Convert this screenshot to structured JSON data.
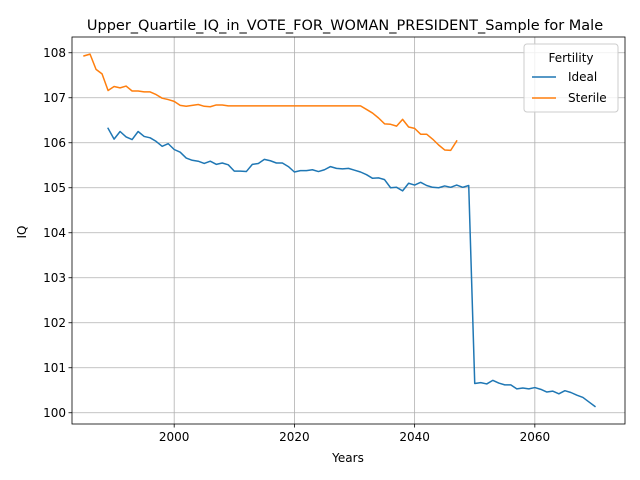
{
  "chart_data": {
    "type": "line",
    "title": "Upper_Quartile_IQ_in_VOTE_FOR_WOMAN_PRESIDENT_Sample for Male",
    "xlabel": "Years",
    "ylabel": "IQ",
    "xlim": [
      1983,
      2075
    ],
    "ylim": [
      99.75,
      108.35
    ],
    "xticks": [
      2000,
      2020,
      2040,
      2060
    ],
    "yticks": [
      100,
      101,
      102,
      103,
      104,
      105,
      106,
      107,
      108
    ],
    "grid": true,
    "legend": {
      "title": "Fertility",
      "placement": "top-right"
    },
    "series": [
      {
        "name": "Ideal",
        "color": "#1f77b4",
        "x": [
          1989,
          1990,
          1991,
          1992,
          1993,
          1994,
          1995,
          1996,
          1997,
          1998,
          1999,
          2000,
          2001,
          2002,
          2003,
          2004,
          2005,
          2006,
          2007,
          2008,
          2009,
          2010,
          2011,
          2012,
          2013,
          2014,
          2015,
          2016,
          2017,
          2018,
          2019,
          2020,
          2021,
          2022,
          2023,
          2024,
          2025,
          2026,
          2027,
          2028,
          2029,
          2030,
          2031,
          2032,
          2033,
          2034,
          2035,
          2036,
          2037,
          2038,
          2039,
          2040,
          2041,
          2042,
          2043,
          2044,
          2045,
          2046,
          2047,
          2048,
          2049,
          2050,
          2051,
          2052,
          2053,
          2054,
          2055,
          2056,
          2057,
          2058,
          2059,
          2060,
          2061,
          2062,
          2063,
          2064,
          2065,
          2066,
          2067,
          2068,
          2069,
          2070
        ],
        "values": [
          106.32,
          106.08,
          106.25,
          106.13,
          106.07,
          106.25,
          106.14,
          106.11,
          106.03,
          105.92,
          105.98,
          105.85,
          105.79,
          105.66,
          105.61,
          105.59,
          105.54,
          105.59,
          105.52,
          105.55,
          105.51,
          105.37,
          105.37,
          105.36,
          105.52,
          105.54,
          105.63,
          105.6,
          105.55,
          105.55,
          105.47,
          105.35,
          105.38,
          105.38,
          105.4,
          105.36,
          105.4,
          105.47,
          105.43,
          105.42,
          105.43,
          105.39,
          105.35,
          105.29,
          105.21,
          105.22,
          105.18,
          105.0,
          105.01,
          104.93,
          105.1,
          105.06,
          105.12,
          105.05,
          105.01,
          105.0,
          105.04,
          105.01,
          105.06,
          105.01,
          105.05,
          100.65,
          100.67,
          100.64,
          100.72,
          100.66,
          100.62,
          100.62,
          100.53,
          100.55,
          100.53,
          100.56,
          100.52,
          100.46,
          100.48,
          100.42,
          100.49,
          100.45,
          100.39,
          100.34,
          100.24,
          100.14
        ]
      },
      {
        "name": "Sterile",
        "color": "#ff7f0e",
        "x": [
          1985,
          1986,
          1987,
          1988,
          1989,
          1990,
          1991,
          1992,
          1993,
          1994,
          1995,
          1996,
          1997,
          1998,
          1999,
          2000,
          2001,
          2002,
          2003,
          2004,
          2005,
          2006,
          2007,
          2008,
          2009,
          2010,
          2011,
          2012,
          2013,
          2014,
          2015,
          2016,
          2017,
          2018,
          2019,
          2020,
          2021,
          2022,
          2023,
          2024,
          2025,
          2026,
          2027,
          2028,
          2029,
          2030,
          2031,
          2032,
          2033,
          2034,
          2035,
          2036,
          2037,
          2038,
          2039,
          2040,
          2041,
          2042,
          2043,
          2044,
          2045,
          2046,
          2047
        ],
        "values": [
          107.93,
          107.97,
          107.63,
          107.53,
          107.16,
          107.25,
          107.22,
          107.26,
          107.15,
          107.15,
          107.13,
          107.13,
          107.07,
          106.99,
          106.96,
          106.92,
          106.83,
          106.81,
          106.83,
          106.85,
          106.81,
          106.8,
          106.84,
          106.84,
          106.82,
          106.82,
          106.82,
          106.82,
          106.82,
          106.82,
          106.82,
          106.82,
          106.82,
          106.82,
          106.82,
          106.82,
          106.82,
          106.82,
          106.82,
          106.82,
          106.82,
          106.82,
          106.82,
          106.82,
          106.82,
          106.82,
          106.82,
          106.74,
          106.66,
          106.55,
          106.42,
          106.41,
          106.37,
          106.52,
          106.35,
          106.32,
          106.19,
          106.19,
          106.08,
          105.95,
          105.84,
          105.83,
          106.04
        ]
      }
    ]
  }
}
